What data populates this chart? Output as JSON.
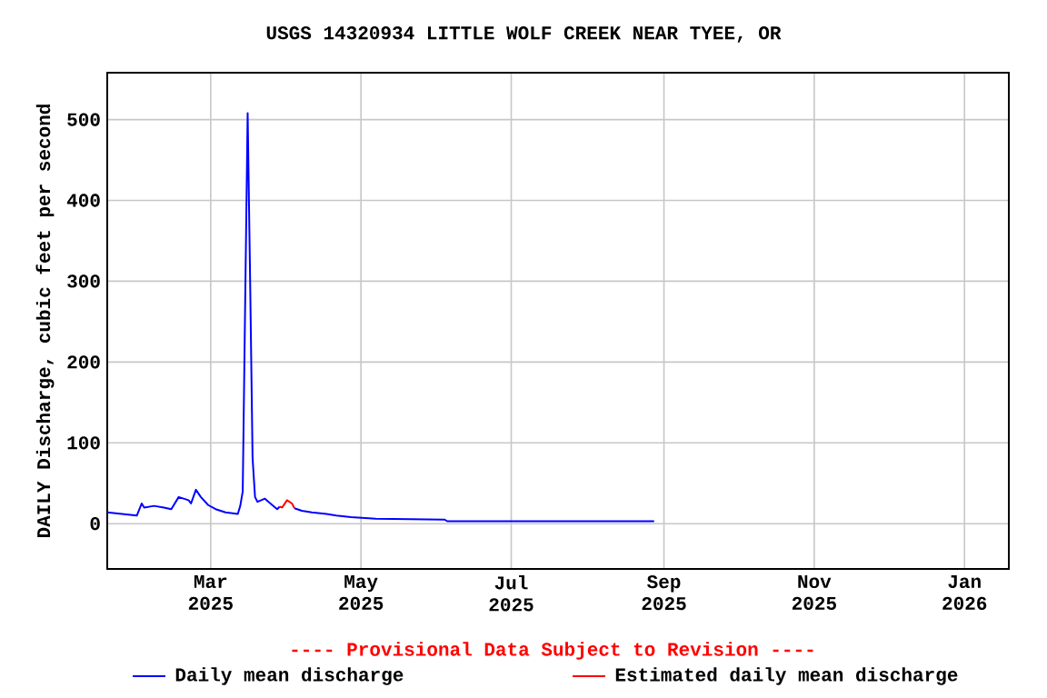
{
  "chart_data": {
    "type": "line",
    "title": "USGS 14320934 LITTLE WOLF CREEK NEAR TYEE, OR",
    "ylabel": "DAILY Discharge, cubic feet per second",
    "annotations": [
      "---- Provisional Data Subject to Revision ----"
    ],
    "series": [
      {
        "name": "Daily mean discharge",
        "color": "#0000ff",
        "x": [
          "2025-01-18",
          "2025-01-24",
          "2025-01-30",
          "2025-02-01",
          "2025-02-02",
          "2025-02-06",
          "2025-02-10",
          "2025-02-13",
          "2025-02-16",
          "2025-02-20",
          "2025-02-21",
          "2025-02-23",
          "2025-02-25",
          "2025-02-28",
          "2025-03-03",
          "2025-03-07",
          "2025-03-12",
          "2025-03-13",
          "2025-03-14",
          "2025-03-15",
          "2025-03-16",
          "2025-03-17",
          "2025-03-18",
          "2025-03-19",
          "2025-03-20",
          "2025-03-23",
          "2025-03-26",
          "2025-03-28",
          "2025-03-29",
          "2025-03-30",
          "2025-04-01",
          "2025-04-03",
          "2025-04-04",
          "2025-04-07",
          "2025-04-11",
          "2025-04-17",
          "2025-04-21",
          "2025-04-27",
          "2025-05-07",
          "2025-06-04",
          "2025-06-05",
          "2025-08-28"
        ],
        "values": [
          14,
          12,
          10,
          25,
          20,
          22,
          20,
          18,
          33,
          29,
          25,
          42,
          33,
          23,
          18,
          14,
          12,
          22,
          40,
          275,
          508,
          302,
          81,
          33,
          27,
          31,
          23,
          18,
          21,
          null,
          null,
          null,
          19,
          16,
          14,
          12,
          10,
          8,
          6,
          5,
          3,
          3
        ]
      },
      {
        "name": "Estimated daily mean discharge",
        "color": "#ff0000",
        "x": [
          "2025-03-29",
          "2025-03-30",
          "2025-04-01",
          "2025-04-03",
          "2025-04-04"
        ],
        "values": [
          21,
          20,
          29,
          25,
          19
        ]
      }
    ],
    "xlim": [
      "2025-01-18",
      "2026-01-19"
    ],
    "xticks": [
      {
        "value": "2025-03-01",
        "label": "Mar 2025"
      },
      {
        "value": "2025-05-01",
        "label": "May 2025"
      },
      {
        "value": "2025-07-01",
        "label": "Jul 2025"
      },
      {
        "value": "2025-09-01",
        "label": "Sep 2025"
      },
      {
        "value": "2025-11-01",
        "label": "Nov 2025"
      },
      {
        "value": "2026-01-01",
        "label": "Jan 2026"
      }
    ],
    "ylim": [
      -56,
      558
    ],
    "yticks": [
      0,
      100,
      200,
      300,
      400,
      500
    ],
    "grid": true,
    "legend": "bottom",
    "marker": "none",
    "line_style": "solid"
  }
}
